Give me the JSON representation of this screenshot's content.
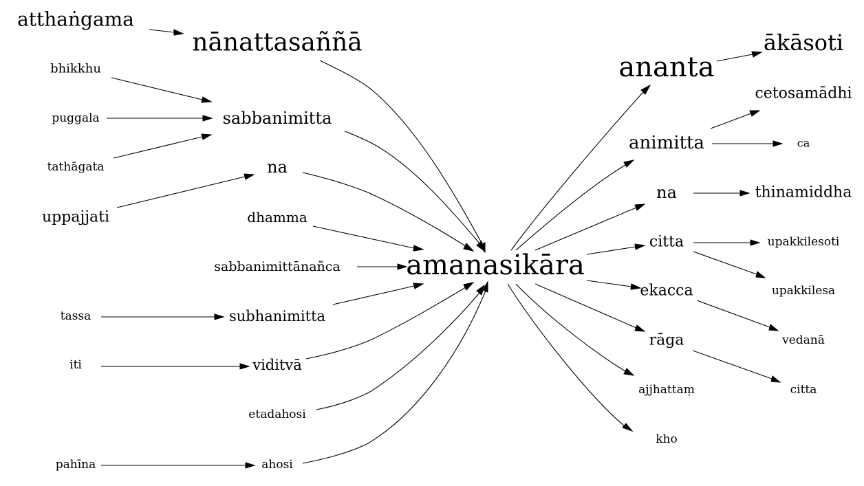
{
  "colors": {
    "background": "#ffffff",
    "ink": "#000000"
  },
  "graph": {
    "nodes": [
      {
        "id": "atthangama",
        "label": "atthaṅgama"
      },
      {
        "id": "nanattasanna",
        "label": "nānattasaññā"
      },
      {
        "id": "bhikkhu",
        "label": "bhikkhu"
      },
      {
        "id": "sabbanimitta",
        "label": "sabbanimitta"
      },
      {
        "id": "puggala",
        "label": "puggala"
      },
      {
        "id": "tathagata",
        "label": "tathāgata"
      },
      {
        "id": "na_left",
        "label": "na"
      },
      {
        "id": "uppajjati",
        "label": "uppajjati"
      },
      {
        "id": "dhamma",
        "label": "dhamma"
      },
      {
        "id": "sabbanimittananca",
        "label": "sabbanimittānañca"
      },
      {
        "id": "amanasikara",
        "label": "amanasikāra"
      },
      {
        "id": "tassa",
        "label": "tassa"
      },
      {
        "id": "subhanimitta",
        "label": "subhanimitta"
      },
      {
        "id": "iti",
        "label": "iti"
      },
      {
        "id": "viditva",
        "label": "viditvā"
      },
      {
        "id": "etadahosi",
        "label": "etadahosi"
      },
      {
        "id": "pahina",
        "label": "pahīna"
      },
      {
        "id": "ahosi",
        "label": "ahosi"
      },
      {
        "id": "ananta",
        "label": "ananta"
      },
      {
        "id": "akasoti",
        "label": "ākāsoti"
      },
      {
        "id": "cetosamadhi",
        "label": "cetosamādhi"
      },
      {
        "id": "animitta",
        "label": "animitta"
      },
      {
        "id": "ca",
        "label": "ca"
      },
      {
        "id": "na_right",
        "label": "na"
      },
      {
        "id": "thinamiddha",
        "label": "thinamiddha"
      },
      {
        "id": "citta_1",
        "label": "citta"
      },
      {
        "id": "upakkilesoti",
        "label": "upakkilesoti"
      },
      {
        "id": "upakkilesa",
        "label": "upakkilesa"
      },
      {
        "id": "ekacca",
        "label": "ekacca"
      },
      {
        "id": "vedana",
        "label": "vedanā"
      },
      {
        "id": "raga",
        "label": "rāga"
      },
      {
        "id": "citta_2",
        "label": "citta"
      },
      {
        "id": "ajjhattam",
        "label": "ajjhattaṃ"
      },
      {
        "id": "kho",
        "label": "kho"
      }
    ],
    "edges": [
      {
        "from": "atthangama",
        "to": "nanattasanna"
      },
      {
        "from": "nanattasanna",
        "to": "amanasikara"
      },
      {
        "from": "bhikkhu",
        "to": "sabbanimitta"
      },
      {
        "from": "puggala",
        "to": "sabbanimitta"
      },
      {
        "from": "tathagata",
        "to": "sabbanimitta"
      },
      {
        "from": "sabbanimitta",
        "to": "amanasikara"
      },
      {
        "from": "uppajjati",
        "to": "na_left"
      },
      {
        "from": "na_left",
        "to": "amanasikara"
      },
      {
        "from": "dhamma",
        "to": "amanasikara"
      },
      {
        "from": "sabbanimittananca",
        "to": "amanasikara"
      },
      {
        "from": "tassa",
        "to": "subhanimitta"
      },
      {
        "from": "subhanimitta",
        "to": "amanasikara"
      },
      {
        "from": "iti",
        "to": "viditva"
      },
      {
        "from": "viditva",
        "to": "amanasikara"
      },
      {
        "from": "etadahosi",
        "to": "amanasikara"
      },
      {
        "from": "pahina",
        "to": "ahosi"
      },
      {
        "from": "ahosi",
        "to": "amanasikara"
      },
      {
        "from": "amanasikara",
        "to": "ananta"
      },
      {
        "from": "ananta",
        "to": "akasoti"
      },
      {
        "from": "amanasikara",
        "to": "animitta"
      },
      {
        "from": "animitta",
        "to": "cetosamadhi"
      },
      {
        "from": "animitta",
        "to": "ca"
      },
      {
        "from": "amanasikara",
        "to": "na_right"
      },
      {
        "from": "na_right",
        "to": "thinamiddha"
      },
      {
        "from": "amanasikara",
        "to": "citta_1"
      },
      {
        "from": "citta_1",
        "to": "upakkilesoti"
      },
      {
        "from": "citta_1",
        "to": "upakkilesa"
      },
      {
        "from": "amanasikara",
        "to": "ekacca"
      },
      {
        "from": "ekacca",
        "to": "vedana"
      },
      {
        "from": "amanasikara",
        "to": "raga"
      },
      {
        "from": "raga",
        "to": "citta_2"
      },
      {
        "from": "amanasikara",
        "to": "ajjhattam"
      },
      {
        "from": "amanasikara",
        "to": "kho"
      }
    ]
  }
}
